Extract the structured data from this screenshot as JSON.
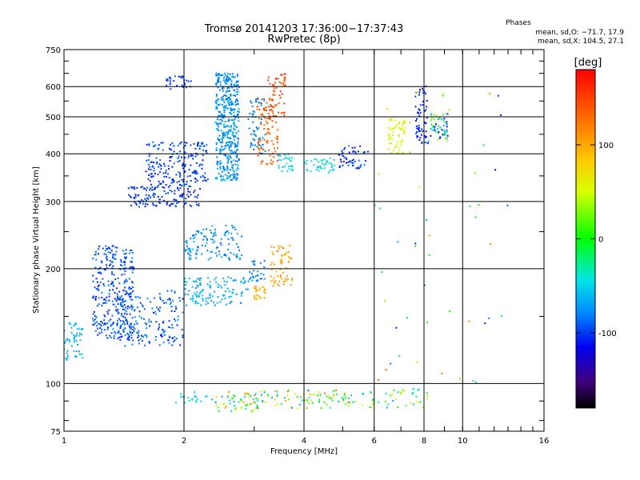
{
  "chart_data": {
    "type": "scatter",
    "title": "Tromsø 20141203 17:36:00−17:37:43",
    "subtitle": "RwPretec (8p)",
    "xlabel": "Frequency [MHz]",
    "ylabel": "Stationary phase Virtual Height [km]",
    "x_scale": "log",
    "y_scale": "log",
    "xlim": [
      1,
      16
    ],
    "ylim": [
      75,
      750
    ],
    "x_ticks": [
      1,
      2,
      4,
      6,
      8,
      10,
      16
    ],
    "y_ticks": [
      75,
      100,
      200,
      300,
      400,
      500,
      600,
      750
    ],
    "colorbar": {
      "label": "[deg]",
      "range": [
        -180,
        180
      ],
      "ticks": [
        100,
        0,
        -100
      ]
    },
    "stats": {
      "title": "Phases",
      "line1": "mean, sd,O: −71.7, 17.9",
      "line2": "mean, sd,X: 104.5, 27.1"
    },
    "clusters": [
      {
        "f": [
          1.0,
          1.12
        ],
        "h": [
          115,
          145
        ],
        "phase": [
          -75,
          -55
        ],
        "n": 50
      },
      {
        "f": [
          1.18,
          1.5
        ],
        "h": [
          130,
          230
        ],
        "phase": [
          -110,
          -80
        ],
        "n": 300
      },
      {
        "f": [
          1.35,
          2.0
        ],
        "h": [
          125,
          175
        ],
        "phase": [
          -110,
          -70
        ],
        "n": 180
      },
      {
        "f": [
          1.45,
          2.2
        ],
        "h": [
          290,
          330
        ],
        "phase": [
          -110,
          -90
        ],
        "n": 130
      },
      {
        "f": [
          1.6,
          2.3
        ],
        "h": [
          330,
          430
        ],
        "phase": [
          -110,
          -85
        ],
        "n": 200
      },
      {
        "f": [
          1.8,
          2.1
        ],
        "h": [
          590,
          640
        ],
        "phase": [
          -105,
          -90
        ],
        "n": 30
      },
      {
        "f": [
          2.0,
          2.8
        ],
        "h": [
          210,
          260
        ],
        "phase": [
          -90,
          -60
        ],
        "n": 120
      },
      {
        "f": [
          2.0,
          2.9
        ],
        "h": [
          160,
          190
        ],
        "phase": [
          -75,
          -55
        ],
        "n": 120
      },
      {
        "f": [
          2.4,
          2.75
        ],
        "h": [
          340,
          650
        ],
        "phase": [
          -90,
          -60
        ],
        "n": 450
      },
      {
        "f": [
          2.9,
          3.2
        ],
        "h": [
          400,
          560
        ],
        "phase": [
          -90,
          -70
        ],
        "n": 60
      },
      {
        "f": [
          3.05,
          3.45
        ],
        "h": [
          375,
          560
        ],
        "phase": [
          120,
          150
        ],
        "n": 80
      },
      {
        "f": [
          3.2,
          3.6
        ],
        "h": [
          480,
          650
        ],
        "phase": [
          130,
          160
        ],
        "n": 60
      },
      {
        "f": [
          3.45,
          3.75
        ],
        "h": [
          360,
          400
        ],
        "phase": [
          -60,
          -40
        ],
        "n": 30
      },
      {
        "f": [
          3.0,
          3.2
        ],
        "h": [
          165,
          180
        ],
        "phase": [
          90,
          110
        ],
        "n": 25
      },
      {
        "f": [
          3.3,
          3.75
        ],
        "h": [
          180,
          230
        ],
        "phase": [
          90,
          115
        ],
        "n": 60
      },
      {
        "f": [
          2.9,
          3.2
        ],
        "h": [
          185,
          210
        ],
        "phase": [
          -90,
          -70
        ],
        "n": 30
      },
      {
        "f": [
          4.0,
          4.8
        ],
        "h": [
          355,
          390
        ],
        "phase": [
          -60,
          -40
        ],
        "n": 40
      },
      {
        "f": [
          4.9,
          5.8
        ],
        "h": [
          365,
          420
        ],
        "phase": [
          -120,
          -80
        ],
        "n": 50
      },
      {
        "f": [
          6.5,
          7.2
        ],
        "h": [
          400,
          500
        ],
        "phase": [
          40,
          70
        ],
        "n": 60
      },
      {
        "f": [
          7.6,
          8.2
        ],
        "h": [
          420,
          610
        ],
        "phase": [
          -120,
          -90
        ],
        "n": 60
      },
      {
        "f": [
          8.3,
          9.2
        ],
        "h": [
          430,
          510
        ],
        "phase": [
          -130,
          40
        ],
        "n": 60
      },
      {
        "f": [
          1.9,
          2.4
        ],
        "h": [
          89,
          95
        ],
        "phase": [
          -60,
          -40
        ],
        "n": 20
      },
      {
        "f": [
          2.4,
          3.1
        ],
        "h": [
          84,
          95
        ],
        "phase": [
          -80,
          140
        ],
        "n": 60
      },
      {
        "f": [
          3.1,
          5.2
        ],
        "h": [
          86,
          96
        ],
        "phase": [
          -90,
          130
        ],
        "n": 80
      },
      {
        "f": [
          5.2,
          8.2
        ],
        "h": [
          86,
          97
        ],
        "phase": [
          -80,
          60
        ],
        "n": 50
      },
      {
        "f": [
          6.0,
          13.0
        ],
        "h": [
          100,
          600
        ],
        "phase": [
          -120,
          140
        ],
        "n": 50
      }
    ]
  }
}
